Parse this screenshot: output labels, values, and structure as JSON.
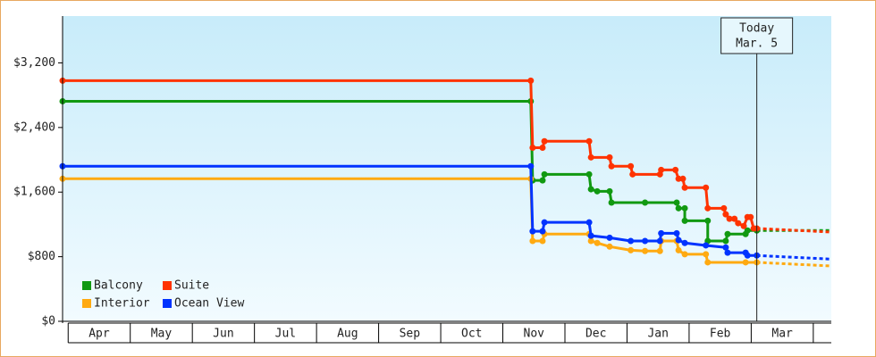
{
  "chart_data": {
    "type": "step-line",
    "xlim": [
      -0.09,
      12.29
    ],
    "xticks": [
      {
        "value": 0.5,
        "label": "Apr"
      },
      {
        "value": 1.5,
        "label": "May"
      },
      {
        "value": 2.5,
        "label": "Jun"
      },
      {
        "value": 3.5,
        "label": "Jul"
      },
      {
        "value": 4.5,
        "label": "Aug"
      },
      {
        "value": 5.5,
        "label": "Sep"
      },
      {
        "value": 6.5,
        "label": "Oct"
      },
      {
        "value": 7.5,
        "label": "Nov"
      },
      {
        "value": 8.5,
        "label": "Dec"
      },
      {
        "value": 9.5,
        "label": "Jan"
      },
      {
        "value": 10.5,
        "label": "Feb"
      },
      {
        "value": 11.5,
        "label": "Mar"
      }
    ],
    "ylim": [
      0,
      3780
    ],
    "yticks": [
      {
        "value": 0,
        "label": "$0"
      },
      {
        "value": 800,
        "label": "$800"
      },
      {
        "value": 1600,
        "label": "$1,600"
      },
      {
        "value": 2400,
        "label": "$2,400"
      },
      {
        "value": 3200,
        "label": "$3,200"
      }
    ],
    "legend": "lower left",
    "annotation": {
      "lines": [
        "Today",
        "Mar. 5"
      ],
      "x": 11.09
    },
    "series": [
      {
        "name": "Balcony",
        "color": "#119911",
        "x": [
          -0.09,
          7.45,
          7.48,
          7.64,
          7.67,
          8.39,
          8.42,
          8.52,
          8.72,
          8.75,
          9.29,
          9.8,
          9.83,
          9.93,
          9.93,
          10.3,
          10.3,
          10.59,
          10.62,
          10.91,
          10.94,
          11.09
        ],
        "values": [
          2725,
          2725,
          1745,
          1745,
          1820,
          1820,
          1635,
          1610,
          1610,
          1470,
          1470,
          1470,
          1400,
          1400,
          1245,
          1245,
          995,
          995,
          1080,
          1080,
          1125,
          1125
        ],
        "projection_x": [
          11.09,
          12.29
        ],
        "projection_values": [
          1125,
          1125
        ]
      },
      {
        "name": "Suite",
        "color": "#ff3300",
        "x": [
          -0.09,
          7.45,
          7.48,
          7.64,
          7.67,
          8.39,
          8.42,
          8.72,
          8.75,
          9.06,
          9.09,
          9.53,
          9.55,
          9.78,
          9.83,
          9.9,
          9.93,
          10.27,
          10.3,
          10.56,
          10.59,
          10.65,
          10.73,
          10.79,
          10.88,
          10.94,
          10.99,
          11.04,
          11.09
        ],
        "values": [
          2980,
          2980,
          2150,
          2150,
          2230,
          2230,
          2030,
          2030,
          1920,
          1920,
          1820,
          1820,
          1875,
          1875,
          1765,
          1765,
          1655,
          1655,
          1400,
          1400,
          1325,
          1270,
          1270,
          1215,
          1180,
          1290,
          1290,
          1150,
          1150
        ],
        "projection_x": [
          11.09,
          12.29
        ],
        "projection_values": [
          1150,
          1105
        ]
      },
      {
        "name": "Interior",
        "color": "#ffaa11",
        "x": [
          -0.09,
          7.45,
          7.48,
          7.64,
          7.67,
          8.39,
          8.42,
          8.52,
          8.72,
          9.06,
          9.29,
          9.53,
          9.55,
          9.8,
          9.83,
          9.93,
          10.27,
          10.3,
          10.91,
          11.09
        ],
        "values": [
          1765,
          1765,
          995,
          995,
          1080,
          1080,
          995,
          970,
          925,
          880,
          870,
          870,
          995,
          995,
          880,
          830,
          830,
          730,
          730,
          730
        ],
        "projection_x": [
          11.09,
          12.29
        ],
        "projection_values": [
          730,
          685
        ]
      },
      {
        "name": "Ocean View",
        "color": "#0033ff",
        "x": [
          -0.09,
          7.45,
          7.48,
          7.64,
          7.67,
          8.39,
          8.42,
          8.72,
          9.06,
          9.29,
          9.53,
          9.55,
          9.8,
          9.83,
          9.93,
          10.27,
          10.59,
          10.62,
          10.91,
          10.94,
          11.09
        ],
        "values": [
          1920,
          1920,
          1115,
          1115,
          1225,
          1225,
          1060,
          1035,
          995,
          995,
          995,
          1090,
          1090,
          1005,
          970,
          940,
          915,
          850,
          850,
          815,
          815
        ],
        "projection_x": [
          11.09,
          12.29
        ],
        "projection_values": [
          815,
          770
        ]
      }
    ]
  }
}
